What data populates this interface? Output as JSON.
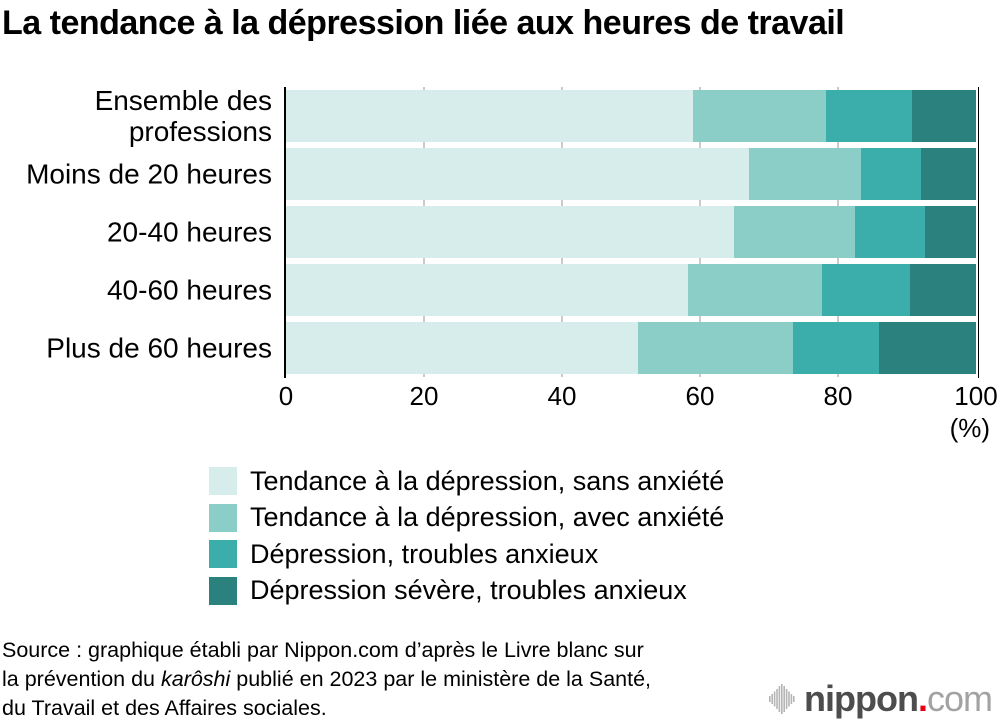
{
  "title": "La tendance à la dépression liée aux heures de travail",
  "chart_data": {
    "type": "bar",
    "orientation": "horizontal",
    "stacked": true,
    "title": "La tendance à la dépression liée aux heures de travail",
    "categories": [
      "Ensemble des professions",
      "Moins de 20 heures",
      "20-40 heures",
      "40-60 heures",
      "Plus de 60 heures"
    ],
    "series": [
      {
        "name": "Tendance à la dépression, sans anxiété",
        "color": "#d7edec",
        "values": [
          59.0,
          67.1,
          64.9,
          58.3,
          51.0
        ]
      },
      {
        "name": "Tendance à la dépression, avec anxiété",
        "color": "#8bcec8",
        "values": [
          19.3,
          16.2,
          17.6,
          19.4,
          22.5
        ]
      },
      {
        "name": "Dépression, troubles anxieux",
        "color": "#3badaa",
        "values": [
          12.4,
          8.7,
          10.1,
          12.8,
          12.5
        ]
      },
      {
        "name": "Dépression sévère, troubles anxieux",
        "color": "#2b817e",
        "values": [
          9.3,
          8.0,
          7.4,
          9.5,
          14.0
        ]
      }
    ],
    "x_axis": {
      "ticks": [
        0,
        20,
        40,
        60,
        80,
        100
      ],
      "range": [
        0,
        100
      ],
      "unit": "(%)"
    },
    "grid": true,
    "legend_position": "bottom",
    "gridline_color": "#cbcbcb",
    "axis_color": "#000000"
  },
  "source": {
    "lines": [
      {
        "text": "Source : graphique établi par Nippon.com d’après le Livre blanc sur"
      },
      {
        "prefix": "la prévention du ",
        "italic": "karôshi",
        "suffix": " publié en 2023 par le ministère de la Santé,"
      },
      {
        "text": "du Travail et des Affaires sociales."
      }
    ]
  },
  "logo": {
    "icon": "soundwave-icon",
    "brand": "nippon",
    "dot": ".",
    "tld": "com",
    "brand_color": "#4d4d4d",
    "dot_color": "#e60012",
    "tld_color": "#a2a2a2"
  }
}
